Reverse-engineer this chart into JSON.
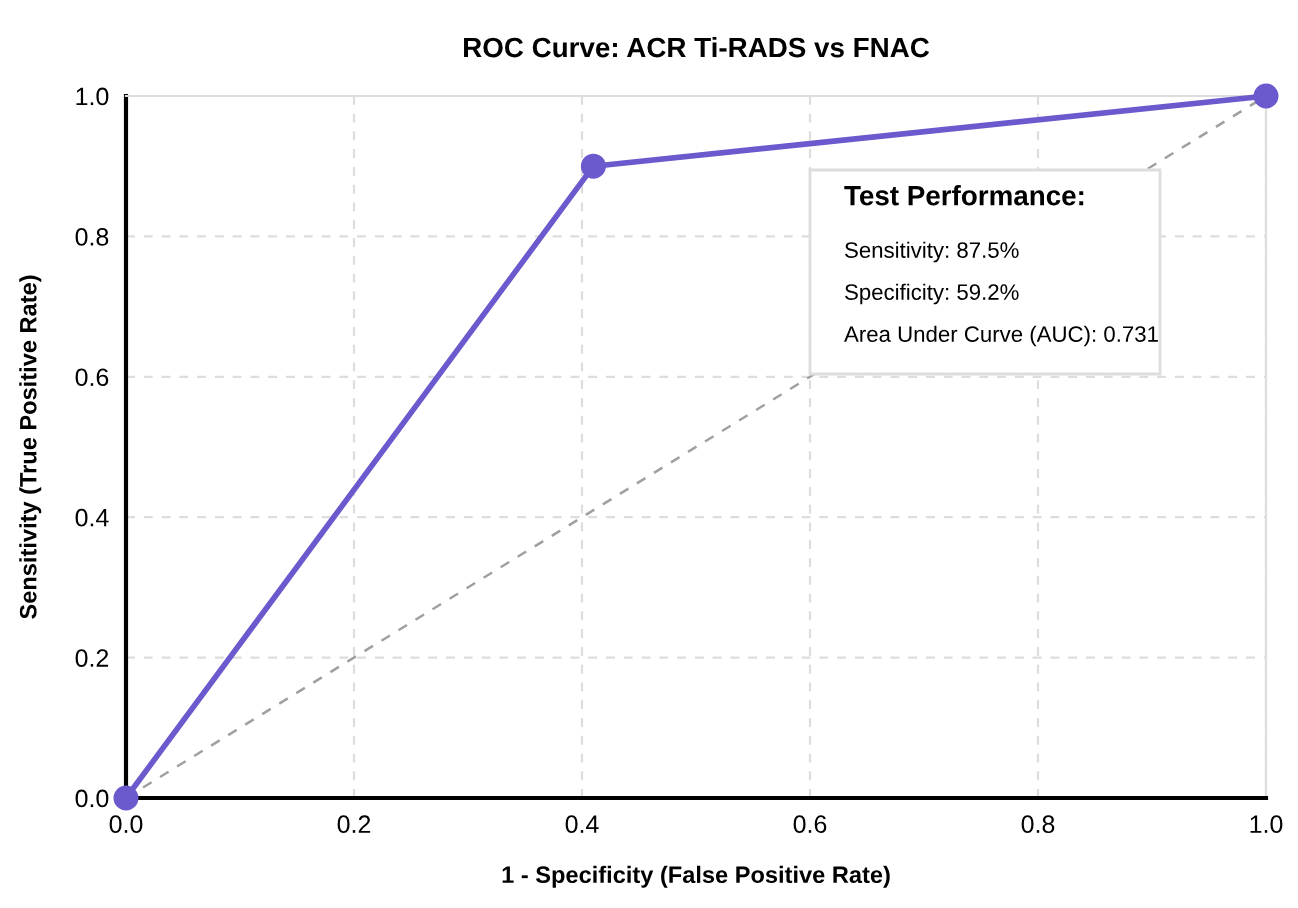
{
  "chart_data": {
    "type": "line",
    "title": "ROC Curve: ACR Ti-RADS vs FNAC",
    "xlabel": "1 - Specificity (False Positive Rate)",
    "ylabel": "Sensitivity (True Positive Rate)",
    "series": [
      {
        "color": "#6a5acd",
        "x": [
          0.0,
          0.41,
          1.0
        ],
        "values": [
          0.0,
          0.9,
          1.0
        ],
        "marker": "circle",
        "line_style": "solid"
      },
      {
        "color": "#a0a0a0",
        "x": [
          0.0,
          1.0
        ],
        "values": [
          0.0,
          1.0
        ],
        "marker": "none",
        "line_style": "dashed"
      }
    ],
    "annotations": [
      "Test Performance:",
      "Sensitivity: 87.5%",
      "Specificity: 59.2%",
      "Area Under Curve (AUC): 0.731"
    ],
    "xlim": [
      0.0,
      1.0
    ],
    "ylim": [
      0.0,
      1.0
    ],
    "xticks": [
      {
        "value": 0.0,
        "label": "0.0"
      },
      0.2,
      0.4,
      0.6,
      0.8,
      {
        "value": 1.0,
        "label": "1.0"
      }
    ],
    "yticks": [
      {
        "value": 0.0,
        "label": "0.0"
      },
      0.2,
      0.4,
      0.6,
      0.8,
      {
        "value": 1.0,
        "label": "1.0"
      }
    ],
    "grid": true,
    "legend": false
  }
}
